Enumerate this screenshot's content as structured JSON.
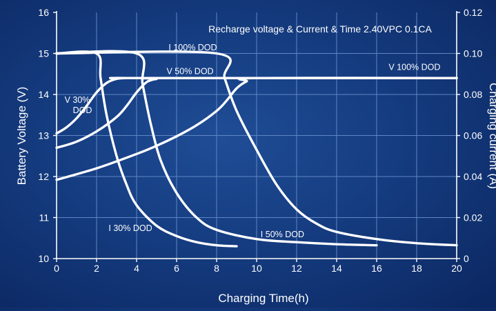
{
  "chart_data": {
    "type": "line",
    "title": "Recharge voltage & Current & Time 2.40VPC 0.1CA",
    "xlabel": "Charging Time(h)",
    "ylabel_left": "Battery Voltage (V)",
    "ylabel_right": "Charging current (A)",
    "xlim": [
      0,
      20
    ],
    "ylim_left": [
      10,
      16
    ],
    "ylim_right": [
      0,
      0.12
    ],
    "x_ticks": [
      "0",
      "2",
      "4",
      "6",
      "8",
      "10",
      "12",
      "14",
      "16",
      "18",
      "20"
    ],
    "y_left_ticks": [
      "10",
      "11",
      "12",
      "13",
      "14",
      "15",
      "16"
    ],
    "y_right_ticks": [
      "0",
      "0.02",
      "0.04",
      "0.06",
      "0.08",
      "0.10",
      "0.12"
    ],
    "grid": true,
    "colors": {
      "curve": "#ffffff",
      "grid": "#5f86c4",
      "axis": "#ffffff"
    },
    "series": [
      {
        "name": "V 30% DOD",
        "axis": "left",
        "x": [
          0,
          0.5,
          1,
          1.5,
          2,
          2.5,
          3,
          3.5,
          4,
          20
        ],
        "y": [
          13.05,
          13.2,
          13.42,
          13.72,
          14.05,
          14.28,
          14.38,
          14.4,
          14.4,
          14.4
        ]
      },
      {
        "name": "V 50% DOD",
        "axis": "left",
        "x": [
          0,
          1,
          2,
          3,
          3.5,
          4,
          4.5,
          5,
          5.5,
          20
        ],
        "y": [
          12.7,
          12.85,
          13.1,
          13.45,
          13.72,
          14.05,
          14.3,
          14.38,
          14.4,
          14.4
        ]
      },
      {
        "name": "V 100% DOD",
        "axis": "left",
        "x": [
          0,
          2,
          4,
          5,
          6,
          7,
          8,
          8.5,
          9,
          9.5,
          10,
          20
        ],
        "y": [
          11.92,
          12.2,
          12.55,
          12.75,
          12.98,
          13.25,
          13.6,
          13.85,
          14.15,
          14.32,
          14.4,
          14.4
        ]
      },
      {
        "name": "I 30% DOD",
        "axis": "right",
        "x": [
          0,
          2,
          2.2,
          2.5,
          3,
          3.5,
          4,
          5,
          6,
          7,
          8,
          9
        ],
        "y": [
          0.1,
          0.1,
          0.088,
          0.07,
          0.05,
          0.036,
          0.026,
          0.016,
          0.011,
          0.008,
          0.0065,
          0.006
        ]
      },
      {
        "name": "I 50% DOD",
        "axis": "right",
        "x": [
          0,
          4,
          4.3,
          4.7,
          5.2,
          6,
          7,
          8,
          10,
          12,
          14,
          16
        ],
        "y": [
          0.1,
          0.1,
          0.085,
          0.066,
          0.048,
          0.032,
          0.02,
          0.014,
          0.0095,
          0.008,
          0.007,
          0.0065
        ]
      },
      {
        "name": "I 100% DOD",
        "axis": "right",
        "x": [
          0,
          8,
          8.4,
          9,
          10,
          11,
          12,
          13,
          14,
          16,
          18,
          20
        ],
        "y": [
          0.1,
          0.1,
          0.088,
          0.072,
          0.053,
          0.036,
          0.024,
          0.017,
          0.013,
          0.0095,
          0.0075,
          0.0065
        ]
      }
    ],
    "annotations": [
      {
        "series": "V 30% DOD",
        "lines": [
          "V 30%",
          "DOD"
        ],
        "x": 0.4,
        "y": 13.8,
        "axis": "left"
      },
      {
        "series": "V 50% DOD",
        "lines": [
          "V 50% DOD"
        ],
        "x": 5.5,
        "y": 14.5,
        "axis": "left"
      },
      {
        "series": "V 100% DOD",
        "lines": [
          "V 100% DOD"
        ],
        "x": 16.6,
        "y": 14.6,
        "axis": "left"
      },
      {
        "series": "I 100% DOD",
        "lines": [
          "I 100% DOD"
        ],
        "x": 5.6,
        "y": 0.1015,
        "axis": "right"
      },
      {
        "series": "I 30% DOD",
        "lines": [
          "I 30% DOD"
        ],
        "x": 2.6,
        "y": 0.0135,
        "axis": "right"
      },
      {
        "series": "I 50% DOD",
        "lines": [
          "I 50% DOD"
        ],
        "x": 10.2,
        "y": 0.0105,
        "axis": "right"
      }
    ]
  }
}
